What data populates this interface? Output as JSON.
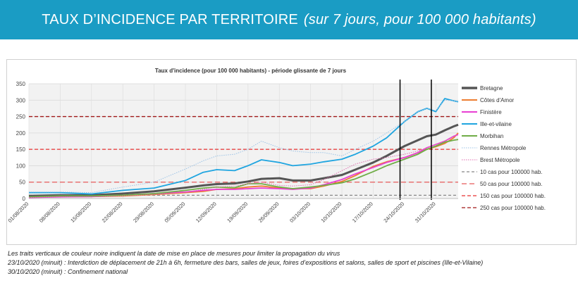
{
  "header": {
    "title": "TAUX D’INCIDENCE PAR TERRITOIRE",
    "subtitle": "(sur 7 jours, pour 100 000 habitants)",
    "background_color": "#1a9cc4"
  },
  "chart_data": {
    "type": "line",
    "title": "Taux d'incidence (pour 100 000 habitants) - période glissante de 7 jours",
    "xlabel": "",
    "ylabel": "",
    "ylim": [
      0,
      350
    ],
    "yticks": [
      0,
      50,
      100,
      150,
      200,
      250,
      300,
      350
    ],
    "grid": true,
    "legend_position": "right",
    "x_start": "01/08/2020",
    "x_end": "05/11/2020",
    "xtick_labels": [
      "01/08/2020",
      "08/08/2020",
      "15/08/2020",
      "22/08/2020",
      "29/08/2020",
      "05/09/2020",
      "12/09/2020",
      "19/09/2020",
      "26/09/2020",
      "03/10/2020",
      "10/10/2020",
      "17/10/2020",
      "24/10/2020",
      "31/10/2020"
    ],
    "x": [
      "01/08/2020",
      "08/08/2020",
      "15/08/2020",
      "22/08/2020",
      "29/08/2020",
      "05/09/2020",
      "09/09/2020",
      "12/09/2020",
      "16/09/2020",
      "19/09/2020",
      "22/09/2020",
      "26/09/2020",
      "29/09/2020",
      "03/10/2020",
      "06/10/2020",
      "10/10/2020",
      "13/10/2020",
      "17/10/2020",
      "20/10/2020",
      "24/10/2020",
      "27/10/2020",
      "29/10/2020",
      "31/10/2020",
      "02/11/2020",
      "04/11/2020",
      "05/11/2020"
    ],
    "series": [
      {
        "name": "Bretagne",
        "color": "#555555",
        "style": "solid-thick",
        "values": [
          8,
          10,
          10,
          15,
          22,
          33,
          40,
          44,
          46,
          52,
          60,
          62,
          55,
          55,
          62,
          72,
          88,
          110,
          130,
          160,
          178,
          190,
          195,
          208,
          220,
          225
        ]
      },
      {
        "name": "Côtes d'Amor",
        "color": "#ed7d31",
        "style": "solid",
        "values": [
          4,
          6,
          6,
          8,
          12,
          18,
          22,
          28,
          30,
          35,
          38,
          32,
          30,
          30,
          38,
          52,
          70,
          98,
          112,
          125,
          140,
          150,
          158,
          168,
          185,
          200
        ]
      },
      {
        "name": "Finistère",
        "color": "#e83fd3",
        "style": "solid",
        "values": [
          3,
          5,
          6,
          10,
          15,
          20,
          25,
          28,
          28,
          30,
          32,
          30,
          28,
          32,
          42,
          58,
          75,
          95,
          110,
          125,
          140,
          155,
          165,
          175,
          190,
          195
        ]
      },
      {
        "name": "Ille-et-vilaine",
        "color": "#1fa5e0",
        "style": "solid",
        "values": [
          18,
          18,
          14,
          25,
          32,
          55,
          80,
          88,
          85,
          100,
          118,
          110,
          100,
          105,
          112,
          120,
          135,
          160,
          185,
          235,
          265,
          275,
          265,
          305,
          298,
          295
        ]
      },
      {
        "name": "Morbihan",
        "color": "#70ad47",
        "style": "solid",
        "values": [
          5,
          8,
          8,
          10,
          15,
          25,
          32,
          35,
          33,
          45,
          45,
          35,
          30,
          35,
          40,
          48,
          60,
          82,
          100,
          120,
          135,
          150,
          160,
          172,
          178,
          180
        ]
      },
      {
        "name": "Rennes Métropole",
        "color": "#9cc3e6",
        "style": "dotted",
        "values": [
          20,
          20,
          18,
          35,
          50,
          90,
          115,
          130,
          135,
          150,
          175,
          155,
          145,
          140,
          140,
          130,
          150,
          175,
          200,
          235,
          265,
          275,
          268,
          300,
          298,
          295
        ]
      },
      {
        "name": "Brest Métropole",
        "color": "#e06fb0",
        "style": "dotted",
        "values": [
          3,
          5,
          5,
          8,
          12,
          20,
          28,
          35,
          38,
          45,
          50,
          40,
          38,
          42,
          58,
          85,
          105,
          120,
          125,
          135,
          145,
          155,
          165,
          175,
          190,
          195
        ]
      }
    ],
    "reference_lines": [
      {
        "name": "10 cas pour 100000 hab.",
        "value": 10,
        "color": "#888888"
      },
      {
        "name": "50 cas pour 100000 hab.",
        "value": 50,
        "color": "#e65a5a"
      },
      {
        "name": "150 cas pour 100000 hab.",
        "value": 150,
        "color": "#e63030"
      },
      {
        "name": "250 cas pour 100000 hab.",
        "value": 250,
        "color": "#a01818"
      }
    ],
    "event_lines": [
      "23/10/2020",
      "30/10/2020"
    ]
  },
  "notes": {
    "line1": "Les traits verticaux de couleur noire indiquent la date de mise en place de mesures pour limiter la propagation du virus",
    "line2": "23/10/2020 (minuit) : Interdiction de déplacement de 21h à 6h, fermeture des bars, salles de jeux, foires d’expositions et salons, salles de sport et piscines (Ille-et-Vilaine)",
    "line3": "30/10/2020 (minuit) : Confinement national"
  }
}
